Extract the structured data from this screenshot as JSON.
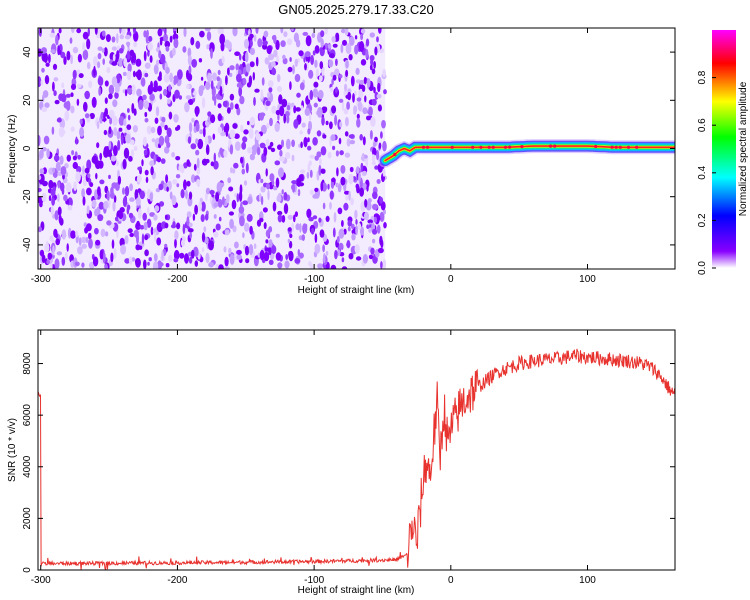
{
  "title": "GN05.2025.279.17.33.C20",
  "chart_data": [
    {
      "type": "heatmap",
      "name": "spectrogram",
      "xlabel": "Height of straight line (km)",
      "ylabel": "Frequency (Hz)",
      "xlim": [
        -302,
        164
      ],
      "ylim": [
        -50,
        50
      ],
      "xticks": [
        -300,
        -200,
        -100,
        0,
        100
      ],
      "xtick_labels": [
        "-300",
        "-200",
        "-100",
        "0",
        "100"
      ],
      "yticks": [
        -40,
        -20,
        0,
        20,
        40
      ],
      "ytick_labels": [
        "-40",
        "-20",
        "0",
        "20",
        "40"
      ],
      "noise_region_x": [
        -302,
        -48
      ],
      "signal_track": {
        "x": [
          -48,
          -45,
          -42,
          -38,
          -34,
          -30,
          -26,
          -20,
          -10,
          0,
          20,
          40,
          60,
          80,
          100,
          120,
          140,
          164
        ],
        "y": [
          -5,
          -4,
          -3,
          -1,
          0,
          -1,
          0.5,
          0.5,
          0.5,
          0.5,
          0.5,
          0.5,
          1,
          1,
          1,
          0.5,
          0.5,
          0.5
        ]
      },
      "colorbar": {
        "label": "Normalized spectral amplitude",
        "range": [
          0,
          1
        ],
        "ticks": [
          0.0,
          0.2,
          0.4,
          0.6,
          0.8
        ],
        "tick_labels": [
          "0.0",
          "0.2",
          "0.4",
          "0.6",
          "0.8"
        ],
        "colors": [
          "#ffffff",
          "#8800ff",
          "#0000ff",
          "#00ffff",
          "#00ff00",
          "#ffff00",
          "#ff0000",
          "#ff00ff"
        ]
      }
    },
    {
      "type": "line",
      "name": "snr",
      "xlabel": "Height of straight line (km)",
      "ylabel": "SNR (10 * v/v)",
      "xlim": [
        -302,
        164
      ],
      "ylim": [
        0,
        9300
      ],
      "xticks": [
        -300,
        -200,
        -100,
        0,
        100
      ],
      "xtick_labels": [
        "-300",
        "-200",
        "-100",
        "0",
        "100"
      ],
      "yticks": [
        0,
        2000,
        4000,
        6000,
        8000
      ],
      "ytick_labels": [
        "0",
        "2000",
        "4000",
        "6000",
        "8000"
      ],
      "color": "#e8322e",
      "series": [
        {
          "name": "SNR",
          "x": [
            -300,
            -250,
            -200,
            -150,
            -100,
            -60,
            -40,
            -32,
            -30,
            -28,
            -25,
            -22,
            -20,
            -18,
            -15,
            -12,
            -10,
            -8,
            -5,
            -2,
            0,
            5,
            10,
            15,
            20,
            25,
            30,
            35,
            40,
            50,
            60,
            70,
            80,
            90,
            100,
            110,
            120,
            130,
            140,
            145,
            150,
            155,
            160,
            164
          ],
          "y": [
            250,
            260,
            280,
            300,
            330,
            370,
            400,
            600,
            1200,
            1800,
            1000,
            2500,
            3600,
            4200,
            3700,
            5400,
            6500,
            4300,
            6300,
            4800,
            5400,
            6100,
            6600,
            6900,
            7100,
            7300,
            7500,
            7700,
            7800,
            8000,
            8100,
            8150,
            8200,
            8300,
            8250,
            8200,
            8150,
            8100,
            8000,
            7900,
            7700,
            7400,
            7000,
            6800
          ]
        }
      ]
    }
  ]
}
